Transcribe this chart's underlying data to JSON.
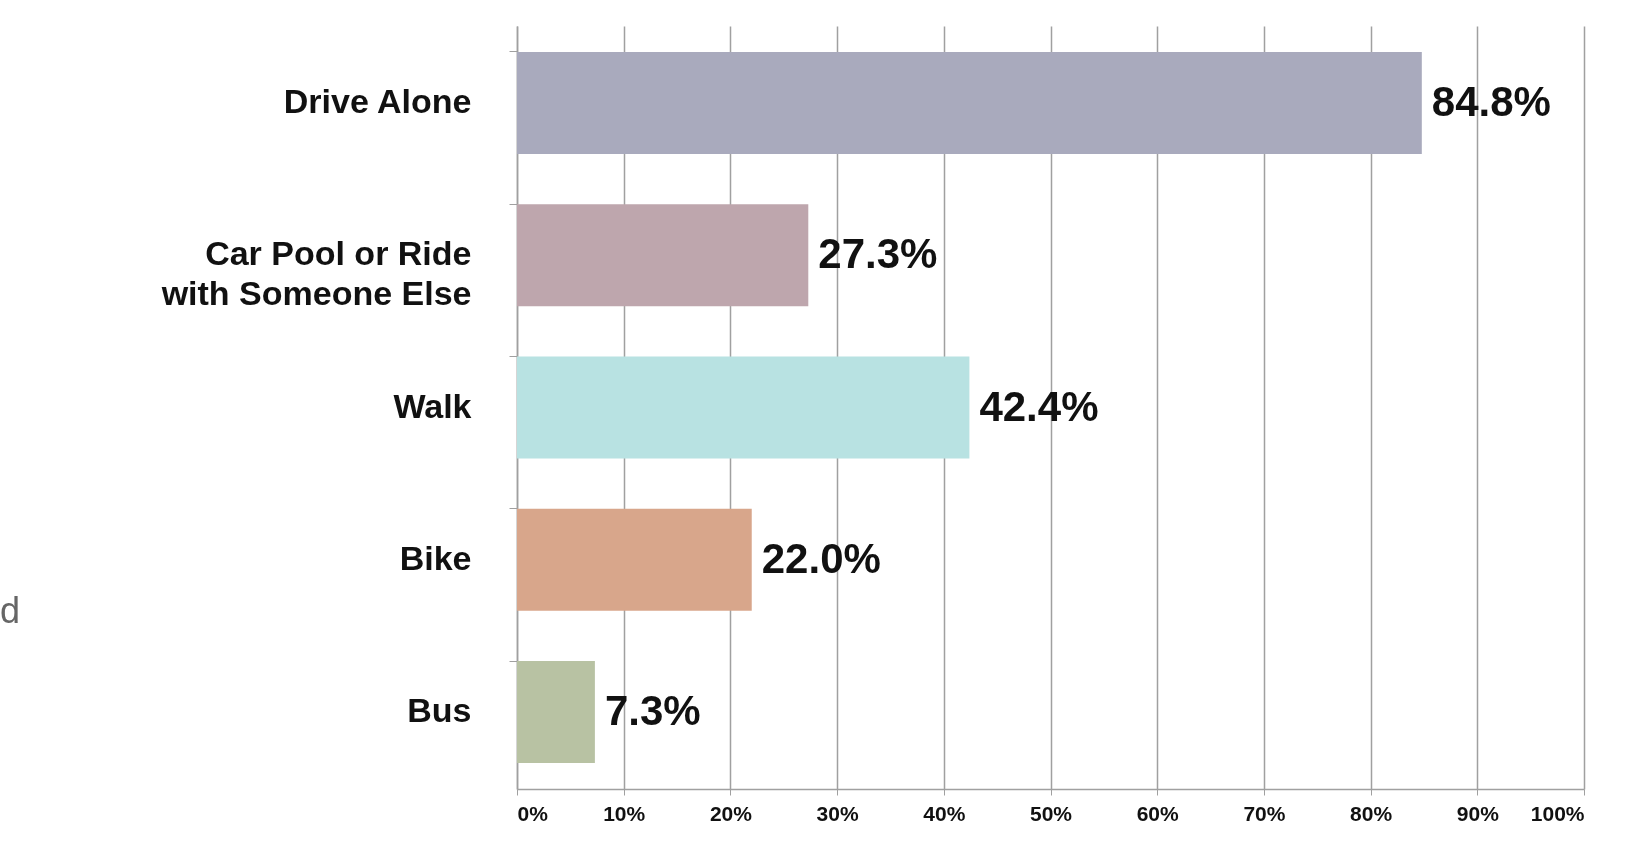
{
  "chart_data": {
    "type": "bar",
    "orientation": "horizontal",
    "categories": [
      "Drive Alone",
      "Car Pool or Ride with Someone Else",
      "Walk",
      "Bike",
      "Bus"
    ],
    "values": [
      84.8,
      27.3,
      42.4,
      22.0,
      7.3
    ],
    "colors": [
      "#a9aabd",
      "#bea6ad",
      "#b8e2e2",
      "#d8a68b",
      "#b8c2a3"
    ],
    "value_labels": [
      "84.8%",
      "27.3%",
      "42.4%",
      "22.0%",
      "7.3%"
    ],
    "xlim": [
      0,
      100
    ],
    "xticks": [
      {
        "value": 0,
        "label": "0%"
      },
      {
        "value": 10,
        "label": "10%"
      },
      {
        "value": 20,
        "label": "20%"
      },
      {
        "value": 30,
        "label": "30%"
      },
      {
        "value": 40,
        "label": "40%"
      },
      {
        "value": 50,
        "label": "50%"
      },
      {
        "value": 60,
        "label": "60%"
      },
      {
        "value": 70,
        "label": "70%"
      },
      {
        "value": 80,
        "label": "80%"
      },
      {
        "value": 90,
        "label": "90%"
      },
      {
        "value": 100,
        "label": "100%"
      }
    ],
    "grid": "x",
    "annotations": [
      "d"
    ]
  }
}
